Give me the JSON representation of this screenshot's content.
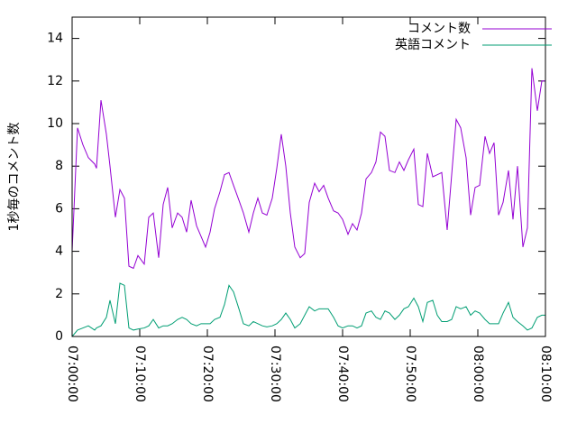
{
  "chart_data": {
    "type": "line",
    "ylabel": "1秒毎のコメント数",
    "x": [
      "07:00:00",
      "07:00:48",
      "07:01:36",
      "07:02:24",
      "07:03:20",
      "07:03:36",
      "07:04:16",
      "07:05:04",
      "07:05:36",
      "07:06:24",
      "07:07:04",
      "07:07:44",
      "07:08:24",
      "07:09:04",
      "07:09:44",
      "07:10:40",
      "07:11:20",
      "07:12:00",
      "07:12:48",
      "07:13:28",
      "07:14:08",
      "07:14:48",
      "07:15:36",
      "07:16:16",
      "07:16:56",
      "07:17:36",
      "07:18:24",
      "07:19:04",
      "07:19:44",
      "07:20:24",
      "07:21:04",
      "07:21:52",
      "07:22:32",
      "07:23:12",
      "07:23:52",
      "07:24:40",
      "07:25:20",
      "07:26:08",
      "07:26:48",
      "07:27:28",
      "07:28:08",
      "07:28:48",
      "07:29:36",
      "07:30:16",
      "07:30:56",
      "07:31:36",
      "07:32:16",
      "07:32:56",
      "07:33:44",
      "07:34:24",
      "07:35:04",
      "07:35:52",
      "07:36:32",
      "07:37:12",
      "07:37:52",
      "07:38:40",
      "07:39:20",
      "07:40:00",
      "07:40:48",
      "07:41:28",
      "07:42:08",
      "07:42:48",
      "07:43:28",
      "07:44:16",
      "07:44:56",
      "07:45:36",
      "07:46:16",
      "07:46:56",
      "07:47:44",
      "07:48:24",
      "07:49:04",
      "07:49:44",
      "07:50:32",
      "07:51:12",
      "07:51:52",
      "07:52:32",
      "07:53:20",
      "07:54:00",
      "07:54:40",
      "07:55:28",
      "07:56:08",
      "07:56:48",
      "07:57:28",
      "07:58:16",
      "07:58:56",
      "07:59:36",
      "08:00:16",
      "08:01:04",
      "08:01:44",
      "08:02:24",
      "08:03:04",
      "08:03:44",
      "08:04:32",
      "08:05:12",
      "08:05:52",
      "08:06:40",
      "08:07:20",
      "08:08:00",
      "08:08:48",
      "08:09:28",
      "08:10:00"
    ],
    "series": [
      {
        "name": "コメント数",
        "color": "#9400d3",
        "values": [
          4.0,
          9.8,
          9.0,
          8.4,
          8.1,
          7.9,
          11.1,
          9.5,
          8.0,
          5.6,
          6.9,
          6.5,
          3.3,
          3.2,
          3.8,
          3.4,
          5.6,
          5.8,
          3.7,
          6.2,
          7.0,
          5.1,
          5.8,
          5.6,
          4.9,
          6.4,
          5.2,
          4.7,
          4.2,
          4.9,
          6.0,
          6.8,
          7.6,
          7.7,
          7.1,
          6.4,
          5.8,
          4.9,
          5.8,
          6.5,
          5.8,
          5.7,
          6.5,
          7.9,
          9.5,
          8.0,
          5.8,
          4.2,
          3.7,
          3.9,
          6.3,
          7.2,
          6.8,
          7.1,
          6.5,
          5.9,
          5.8,
          5.5,
          4.8,
          5.3,
          5.0,
          5.8,
          7.4,
          7.7,
          8.2,
          9.6,
          9.4,
          7.8,
          7.7,
          8.2,
          7.8,
          8.3,
          8.8,
          6.2,
          6.1,
          8.6,
          7.5,
          7.6,
          7.7,
          5.0,
          7.6,
          10.2,
          9.8,
          8.4,
          5.7,
          7.0,
          7.1,
          9.4,
          8.6,
          9.1,
          5.7,
          6.3,
          7.8,
          5.5,
          8.0,
          4.2,
          5.1,
          12.6,
          10.6,
          12.0,
          12.0
        ]
      },
      {
        "name": "英語コメント",
        "color": "#009e73",
        "values": [
          0.0,
          0.3,
          0.4,
          0.5,
          0.3,
          0.4,
          0.5,
          0.9,
          1.7,
          0.6,
          2.5,
          2.4,
          0.4,
          0.3,
          0.35,
          0.4,
          0.5,
          0.8,
          0.4,
          0.5,
          0.5,
          0.6,
          0.8,
          0.9,
          0.8,
          0.6,
          0.5,
          0.6,
          0.6,
          0.6,
          0.8,
          0.9,
          1.5,
          2.4,
          2.1,
          1.3,
          0.6,
          0.5,
          0.7,
          0.6,
          0.5,
          0.45,
          0.5,
          0.6,
          0.8,
          1.1,
          0.8,
          0.4,
          0.6,
          1.0,
          1.4,
          1.2,
          1.3,
          1.3,
          1.3,
          0.9,
          0.5,
          0.4,
          0.5,
          0.5,
          0.4,
          0.5,
          1.1,
          1.2,
          0.9,
          0.8,
          1.2,
          1.1,
          0.8,
          1.0,
          1.3,
          1.4,
          1.8,
          1.4,
          0.7,
          1.6,
          1.7,
          1.0,
          0.7,
          0.7,
          0.8,
          1.4,
          1.3,
          1.4,
          1.0,
          1.2,
          1.1,
          0.8,
          0.6,
          0.6,
          0.6,
          1.1,
          1.6,
          0.9,
          0.7,
          0.5,
          0.3,
          0.4,
          0.9,
          1.0,
          1.0
        ]
      }
    ],
    "xlim": [
      "07:00:00",
      "08:10:00"
    ],
    "xticks": [
      "07:00:00",
      "07:10:00",
      "07:20:00",
      "07:30:00",
      "07:40:00",
      "07:50:00",
      "08:00:00",
      "08:10:00"
    ],
    "ylim": [
      0,
      15
    ],
    "yticks": [
      0,
      2,
      4,
      6,
      8,
      10,
      12,
      14
    ],
    "legend": "top-right",
    "grid": false
  }
}
